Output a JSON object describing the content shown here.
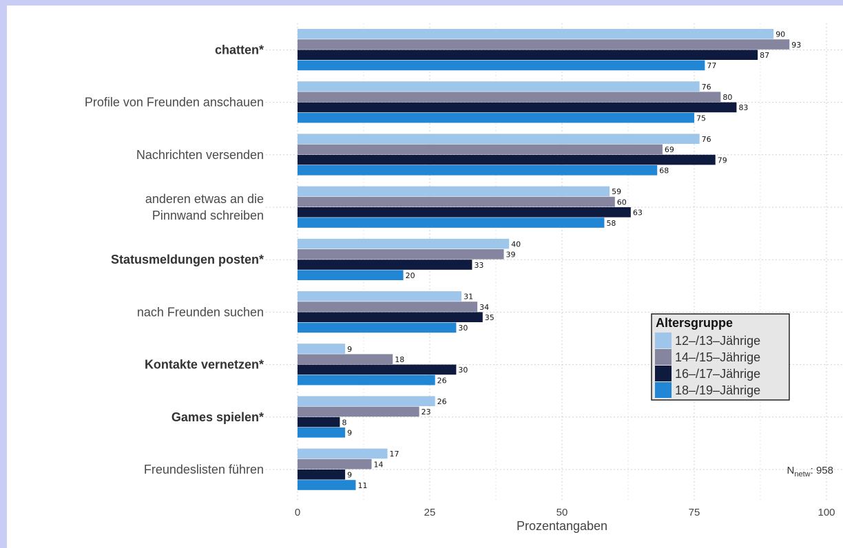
{
  "chart_data": {
    "type": "bar",
    "orientation": "horizontal",
    "categories": [
      {
        "label": "chatten*",
        "bold": true
      },
      {
        "label": "Profile von Freunden anschauen",
        "bold": false
      },
      {
        "label": "Nachrichten versenden",
        "bold": false
      },
      {
        "label": [
          "anderen etwas an die",
          "Pinnwand schreiben"
        ],
        "bold": false
      },
      {
        "label": "Statusmeldungen posten*",
        "bold": true
      },
      {
        "label": "nach Freunden suchen",
        "bold": false
      },
      {
        "label": "Kontakte vernetzen*",
        "bold": true
      },
      {
        "label": "Games spielen*",
        "bold": true
      },
      {
        "label": "Freundeslisten führen",
        "bold": false
      }
    ],
    "series": [
      {
        "name": "12–/13–Jährige",
        "color": "#9dc6ea",
        "values": [
          90,
          76,
          76,
          59,
          40,
          31,
          9,
          26,
          17
        ]
      },
      {
        "name": "14–/15–Jährige",
        "color": "#8585a0",
        "values": [
          93,
          80,
          69,
          60,
          39,
          34,
          18,
          23,
          14
        ]
      },
      {
        "name": "16–/17–Jährige",
        "color": "#0e1a3e",
        "values": [
          87,
          83,
          79,
          63,
          33,
          35,
          30,
          8,
          9
        ]
      },
      {
        "name": "18–/19–Jährige",
        "color": "#2186d4",
        "values": [
          77,
          75,
          68,
          58,
          20,
          30,
          26,
          9,
          11
        ]
      }
    ],
    "xlabel": "Prozentangaben",
    "xlim": [
      0,
      100
    ],
    "xticks": [
      0,
      25,
      50,
      75,
      100
    ],
    "grid": true,
    "legend": {
      "title": "Altersgruppe",
      "placement": "right"
    },
    "annotation": {
      "main": "N",
      "sub": "netw",
      "text": ": 958"
    }
  }
}
